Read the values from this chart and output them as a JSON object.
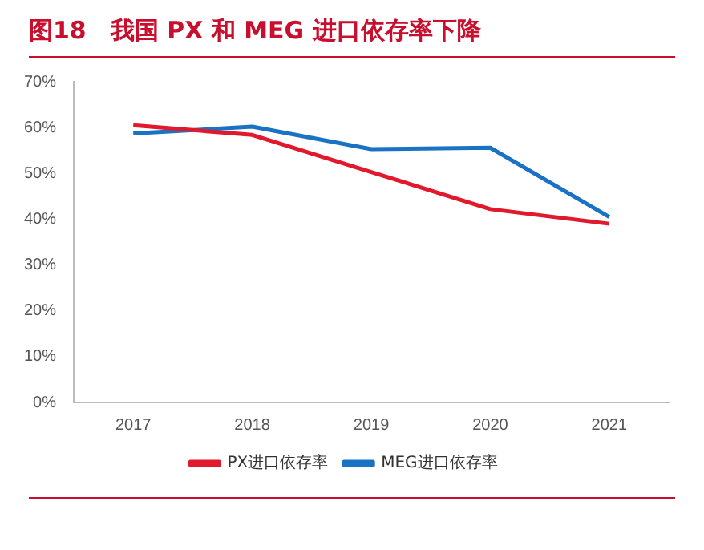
{
  "chart_data": {
    "type": "line",
    "title": "图18　我国 PX 和 MEG 进口依存率下降",
    "categories": [
      "2017",
      "2018",
      "2019",
      "2020",
      "2021"
    ],
    "series": [
      {
        "name": "PX进口依存率",
        "color": "#e0192d",
        "values": [
          60.5,
          58.4,
          50.3,
          42.2,
          39.0
        ]
      },
      {
        "name": "MEG进口依存率",
        "color": "#1a72c4",
        "values": [
          58.7,
          60.2,
          55.3,
          55.6,
          40.5
        ]
      }
    ],
    "ylim": [
      0,
      70
    ],
    "yticks": [
      {
        "value": 0,
        "label": "0%"
      },
      {
        "value": 10,
        "label": "10%"
      },
      {
        "value": 20,
        "label": "20%"
      },
      {
        "value": 30,
        "label": "30%"
      },
      {
        "value": 40,
        "label": "40%"
      },
      {
        "value": 50,
        "label": "50%"
      },
      {
        "value": 60,
        "label": "60%"
      },
      {
        "value": 70,
        "label": "70%"
      }
    ],
    "grid": false,
    "legend": "bottom",
    "marker": "none",
    "line_style": "solid"
  }
}
